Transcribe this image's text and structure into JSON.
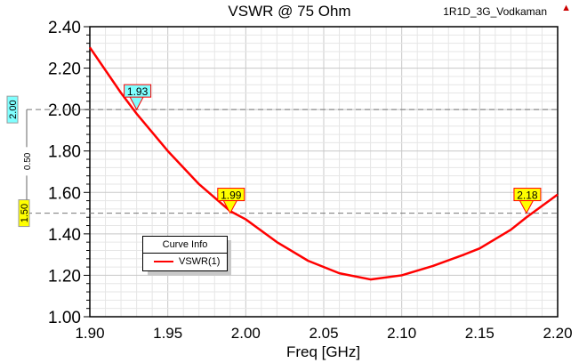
{
  "header": {
    "project": "1R1D_3G_Vodkaman",
    "logo_icon": "ansys-logo-icon"
  },
  "chart_data": {
    "type": "line",
    "title": "VSWR @ 75 Ohm",
    "xlabel": "Freq [GHz]",
    "ylabel": "",
    "xlim": [
      1.9,
      2.2
    ],
    "ylim": [
      1.0,
      2.4
    ],
    "xticks": [
      "1.90",
      "1.95",
      "2.00",
      "2.05",
      "2.10",
      "2.15",
      "2.20"
    ],
    "yticks": [
      "1.00",
      "1.20",
      "1.40",
      "1.60",
      "1.80",
      "2.00",
      "2.20",
      "2.40"
    ],
    "grid": true,
    "legend": {
      "title": "Curve Info",
      "placement": "bottom-left",
      "entries": [
        "VSWR(1)"
      ]
    },
    "series": [
      {
        "name": "VSWR(1)",
        "color": "#ff0000",
        "x": [
          1.9,
          1.92,
          1.93,
          1.95,
          1.97,
          1.99,
          2.0,
          2.02,
          2.04,
          2.05,
          2.06,
          2.08,
          2.1,
          2.12,
          2.14,
          2.15,
          2.17,
          2.18,
          2.2
        ],
        "y": [
          2.3,
          2.08,
          1.98,
          1.8,
          1.64,
          1.51,
          1.47,
          1.36,
          1.27,
          1.24,
          1.21,
          1.18,
          1.2,
          1.245,
          1.3,
          1.33,
          1.42,
          1.48,
          1.59
        ]
      }
    ],
    "markers": [
      {
        "label": "1.93",
        "x": 1.93,
        "y": 2.0,
        "color": "#80ffff"
      },
      {
        "label": "1.99",
        "x": 1.99,
        "y": 1.5,
        "color": "#ffff00"
      },
      {
        "label": "2.18",
        "x": 2.18,
        "y": 1.5,
        "color": "#ffff00"
      }
    ],
    "hlines": [
      {
        "label": "2.00",
        "y": 2.0,
        "color": "#80ffff"
      },
      {
        "label": "1.50",
        "y": 1.5,
        "color": "#ffff00"
      }
    ],
    "delta_label": "0.50"
  }
}
